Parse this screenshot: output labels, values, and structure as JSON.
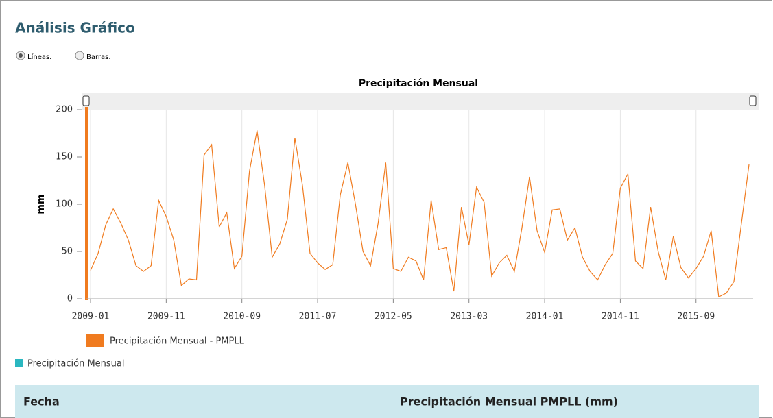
{
  "header": {
    "title": "Análisis Gráfico"
  },
  "options": [
    "Líneas.",
    "Barras."
  ],
  "chart_data": {
    "type": "line",
    "title": "Precipitación Mensual",
    "y_label": "mm",
    "x": [
      "2009-01",
      "2009-02",
      "2009-03",
      "2009-04",
      "2009-05",
      "2009-06",
      "2009-07",
      "2009-08",
      "2009-09",
      "2009-10",
      "2009-11",
      "2009-12",
      "2010-01",
      "2010-02",
      "2010-03",
      "2010-04",
      "2010-05",
      "2010-06",
      "2010-07",
      "2010-08",
      "2010-09",
      "2010-10",
      "2010-11",
      "2010-12",
      "2011-01",
      "2011-02",
      "2011-03",
      "2011-04",
      "2011-05",
      "2011-06",
      "2011-07",
      "2011-08",
      "2011-09",
      "2011-10",
      "2011-11",
      "2011-12",
      "2012-01",
      "2012-02",
      "2012-03",
      "2012-04",
      "2012-05",
      "2012-06",
      "2012-07",
      "2012-08",
      "2012-09",
      "2012-10",
      "2012-11",
      "2012-12",
      "2013-01",
      "2013-02",
      "2013-03",
      "2013-04",
      "2013-05",
      "2013-06",
      "2013-07",
      "2013-08",
      "2013-09",
      "2013-10",
      "2013-11",
      "2013-12",
      "2014-01",
      "2014-02",
      "2014-03",
      "2014-04",
      "2014-05",
      "2014-06",
      "2014-07",
      "2014-08",
      "2014-09",
      "2014-10",
      "2014-11",
      "2014-12",
      "2015-01",
      "2015-02",
      "2015-03",
      "2015-04",
      "2015-05",
      "2015-06",
      "2015-07",
      "2015-08",
      "2015-09",
      "2015-10",
      "2015-11",
      "2015-12",
      "2016-01",
      "2016-02",
      "2016-03",
      "2016-04"
    ],
    "series": [
      {
        "name": "Precipitación Mensual - PMPLL",
        "color": "#f07b1f",
        "values": [
          30,
          48,
          78,
          95,
          80,
          62,
          35,
          29,
          35,
          104,
          87,
          62,
          14,
          21,
          20,
          152,
          163,
          76,
          91,
          32,
          45,
          135,
          178,
          120,
          44,
          58,
          84,
          170,
          120,
          48,
          38,
          31,
          36,
          110,
          144,
          100,
          50,
          35,
          80,
          144,
          32,
          29,
          44,
          40,
          20,
          104,
          52,
          54,
          8,
          97,
          57,
          118,
          102,
          24,
          38,
          46,
          29,
          75,
          129,
          72,
          49,
          94,
          95,
          62,
          75,
          44,
          29,
          20,
          36,
          48,
          117,
          132,
          40,
          32,
          97,
          50,
          20,
          66,
          33,
          22,
          32,
          45,
          72,
          2,
          6,
          18,
          80,
          142
        ]
      }
    ],
    "ylim": [
      0,
      200
    ],
    "yticks": [
      0,
      50,
      100,
      150,
      200
    ],
    "xticks": [
      "2009-01",
      "2009-11",
      "2010-09",
      "2011-07",
      "2012-05",
      "2013-03",
      "2014-01",
      "2014-11",
      "2015-09"
    ],
    "grid": true
  },
  "legend2": {
    "label": "Precipitación Mensual",
    "color": "#2ab7c0"
  },
  "table": {
    "columns": [
      "Fecha",
      "Precipitación Mensual PMPLL (mm)"
    ]
  }
}
